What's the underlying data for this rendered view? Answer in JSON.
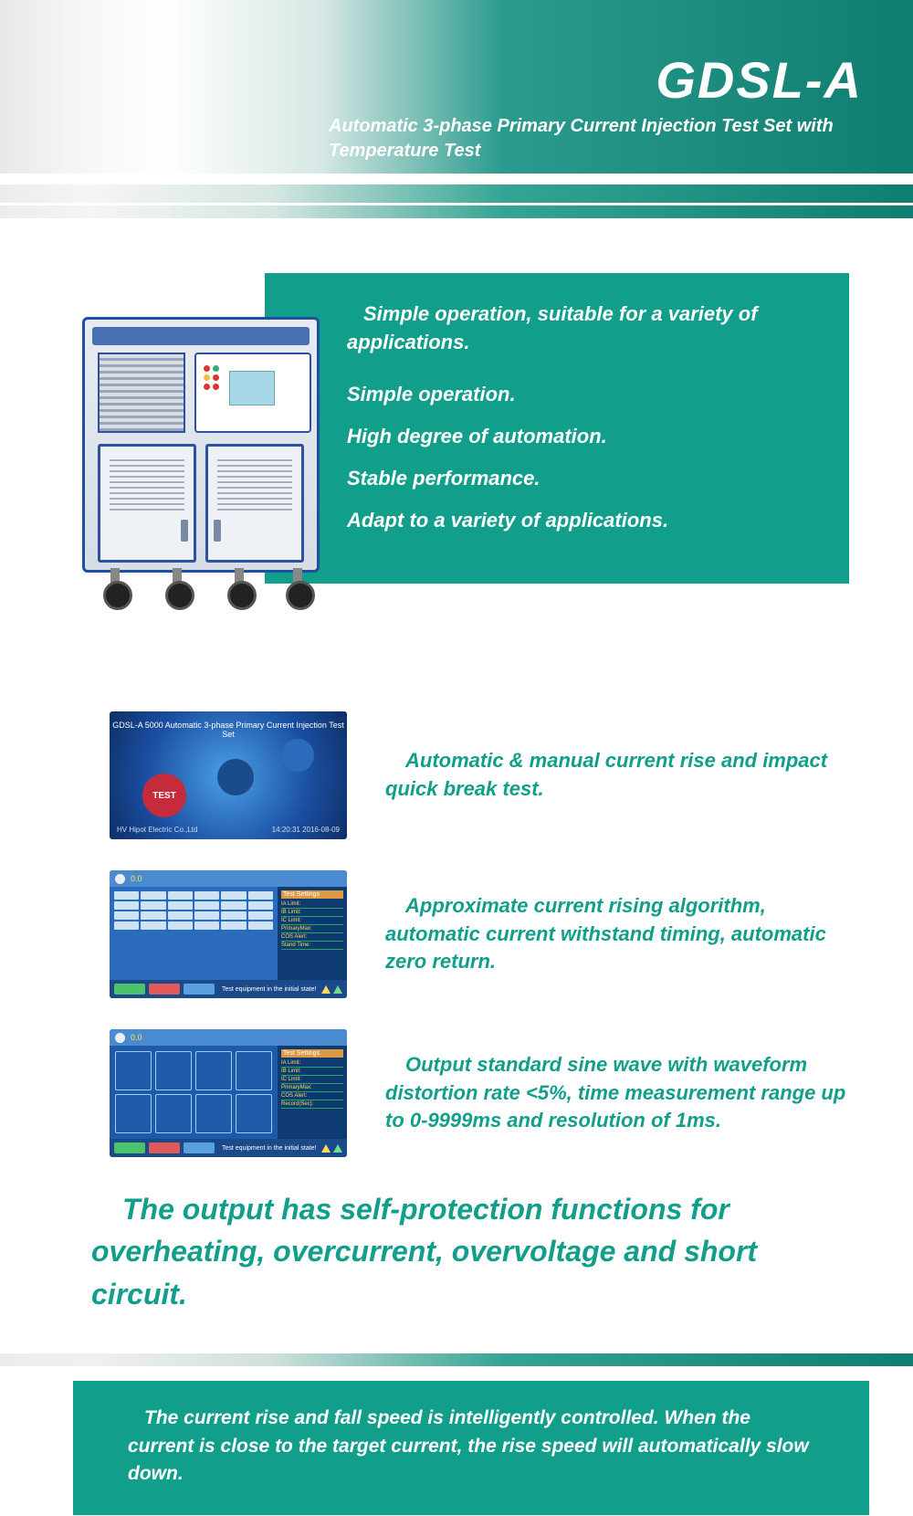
{
  "header": {
    "title": "GDSL-A",
    "subtitle": "Automatic 3-phase Primary Current Injection Test Set with Temperature Test"
  },
  "hero": {
    "lead": "Simple operation, suitable for a variety of applications.",
    "lines": [
      "Simple operation.",
      "High degree of automation.",
      "Stable performance.",
      "Adapt to a variety of applications."
    ]
  },
  "features": [
    {
      "text": "Automatic & manual current rise and impact quick break test."
    },
    {
      "text": "Approximate current rising algorithm, automatic current withstand timing, automatic zero return."
    },
    {
      "text": "Output standard sine wave with waveform distortion rate <5%, time measurement range up to 0-9999ms and resolution of 1ms."
    }
  ],
  "thumb1": {
    "title": "GDSL-A 5000 Automatic 3-phase Primary Current Injection Test Set",
    "test_label": "TEST",
    "footer_left": "HV Hipot Electric Co.,Ltd",
    "footer_right": "14:20:31 2016-08-09"
  },
  "thumb_ui": {
    "top_val": "0.0",
    "settings_hdr": "Test Settings",
    "rows": [
      "IA Limit:",
      "IB Limit:",
      "IC Limit:",
      "PrimaryMax:",
      "COS Alert:",
      "Stand Time:",
      "Record(Sec):"
    ],
    "status": "Test equipment in the initial state!"
  },
  "big_statement": "The output has self-protection functions for overheating, overcurrent, overvoltage and short circuit.",
  "footer_text": "The current rise and fall speed is intelligently controlled. When the current is close to the target current, the rise speed will automatically slow down.",
  "colors": {
    "brand_teal": "#119e8a",
    "dark_teal": "#0f7d6f",
    "machine_blue": "#2c51a2"
  },
  "typography": {
    "title_fontsize": 56,
    "body_fontsize": 22,
    "big_statement_fontsize": 32,
    "font_style": "italic"
  }
}
